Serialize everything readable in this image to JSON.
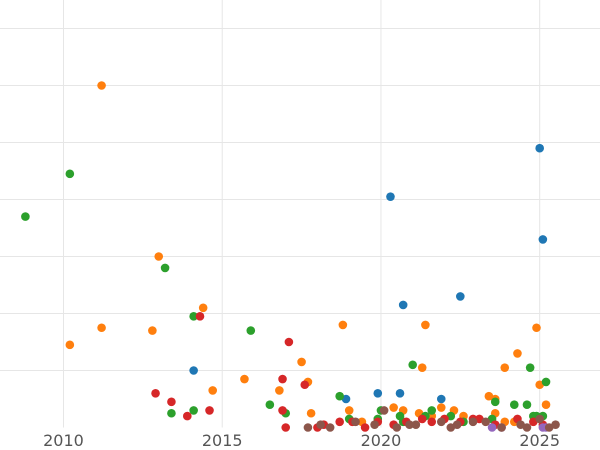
{
  "chart_data": {
    "type": "scatter",
    "title": "",
    "xlabel": "",
    "ylabel": "",
    "xlim": [
      2008,
      2026.9
    ],
    "ylim": [
      0,
      7.5
    ],
    "x_ticks": [
      2010,
      2015,
      2020,
      2025
    ],
    "x_tick_labels": [
      "2010",
      "2015",
      "2020",
      "2025"
    ],
    "y_gridlines": [
      1,
      2,
      3,
      4,
      5,
      6,
      7
    ],
    "y_tick_labels": [],
    "grid": true,
    "legend": "none",
    "series": [
      {
        "color": "#1f77b4",
        "points": [
          [
            2014.1,
            1.0
          ],
          [
            2018.9,
            0.5
          ],
          [
            2019.9,
            0.6
          ],
          [
            2020.3,
            4.05
          ],
          [
            2020.6,
            0.6
          ],
          [
            2020.7,
            2.15
          ],
          [
            2021.9,
            0.5
          ],
          [
            2022.5,
            2.3
          ],
          [
            2025.0,
            4.9
          ],
          [
            2025.1,
            3.3
          ]
        ]
      },
      {
        "color": "#ff7f0e",
        "points": [
          [
            2010.2,
            1.45
          ],
          [
            2011.2,
            1.75
          ],
          [
            2011.2,
            6.0
          ],
          [
            2012.8,
            1.7
          ],
          [
            2013.0,
            3.0
          ],
          [
            2014.4,
            2.1
          ],
          [
            2014.7,
            0.65
          ],
          [
            2015.7,
            0.85
          ],
          [
            2016.8,
            0.65
          ],
          [
            2017.5,
            1.15
          ],
          [
            2017.7,
            0.8
          ],
          [
            2017.8,
            0.25
          ],
          [
            2018.8,
            1.8
          ],
          [
            2019.0,
            0.3
          ],
          [
            2019.4,
            0.1
          ],
          [
            2020.4,
            0.35
          ],
          [
            2020.7,
            0.3
          ],
          [
            2021.2,
            0.25
          ],
          [
            2021.3,
            1.05
          ],
          [
            2021.4,
            1.8
          ],
          [
            2021.6,
            0.2
          ],
          [
            2021.9,
            0.35
          ],
          [
            2022.3,
            0.3
          ],
          [
            2022.6,
            0.2
          ],
          [
            2023.4,
            0.55
          ],
          [
            2023.6,
            0.5
          ],
          [
            2023.6,
            0.25
          ],
          [
            2023.9,
            1.05
          ],
          [
            2023.9,
            0.1
          ],
          [
            2024.2,
            0.1
          ],
          [
            2024.3,
            1.3
          ],
          [
            2024.9,
            1.75
          ],
          [
            2025.0,
            0.75
          ],
          [
            2025.2,
            0.4
          ]
        ]
      },
      {
        "color": "#2ca02c",
        "points": [
          [
            2008.8,
            3.7
          ],
          [
            2010.2,
            4.45
          ],
          [
            2013.2,
            2.8
          ],
          [
            2013.4,
            0.25
          ],
          [
            2014.1,
            1.95
          ],
          [
            2014.1,
            0.3
          ],
          [
            2015.9,
            1.7
          ],
          [
            2016.5,
            0.4
          ],
          [
            2017.0,
            0.25
          ],
          [
            2018.7,
            0.55
          ],
          [
            2019.0,
            0.15
          ],
          [
            2019.9,
            0.15
          ],
          [
            2020.0,
            0.3
          ],
          [
            2020.6,
            0.2
          ],
          [
            2020.7,
            0.1
          ],
          [
            2021.0,
            1.1
          ],
          [
            2021.4,
            0.2
          ],
          [
            2021.6,
            0.3
          ],
          [
            2022.2,
            0.2
          ],
          [
            2022.6,
            0.1
          ],
          [
            2023.5,
            0.15
          ],
          [
            2023.6,
            0.45
          ],
          [
            2024.2,
            0.4
          ],
          [
            2024.6,
            0.4
          ],
          [
            2024.8,
            0.2
          ],
          [
            2024.9,
            0.2
          ],
          [
            2025.1,
            0.2
          ],
          [
            2025.2,
            0.8
          ],
          [
            2024.7,
            1.05
          ]
        ]
      },
      {
        "color": "#d62728",
        "points": [
          [
            2012.9,
            0.6
          ],
          [
            2013.4,
            0.45
          ],
          [
            2013.9,
            0.2
          ],
          [
            2014.3,
            1.95
          ],
          [
            2014.6,
            0.3
          ],
          [
            2016.9,
            0.85
          ],
          [
            2016.9,
            0.3
          ],
          [
            2017.0,
            0.0
          ],
          [
            2017.1,
            1.5
          ],
          [
            2017.6,
            0.75
          ],
          [
            2018.0,
            0.0
          ],
          [
            2018.2,
            0.05
          ],
          [
            2018.7,
            0.1
          ],
          [
            2019.1,
            0.1
          ],
          [
            2019.5,
            0.0
          ],
          [
            2019.9,
            0.1
          ],
          [
            2020.4,
            0.05
          ],
          [
            2020.8,
            0.1
          ],
          [
            2021.3,
            0.15
          ],
          [
            2021.6,
            0.1
          ],
          [
            2022.0,
            0.15
          ],
          [
            2022.5,
            0.1
          ],
          [
            2022.9,
            0.15
          ],
          [
            2023.1,
            0.15
          ],
          [
            2023.6,
            0.05
          ],
          [
            2024.3,
            0.15
          ],
          [
            2024.8,
            0.1
          ],
          [
            2025.1,
            0.05
          ]
        ]
      },
      {
        "color": "#9467bd",
        "points": [
          [
            2023.5,
            0.0
          ],
          [
            2023.8,
            0.0
          ],
          [
            2025.1,
            0.0
          ],
          [
            2025.2,
            0.0
          ]
        ]
      },
      {
        "color": "#8c564b",
        "points": [
          [
            2017.7,
            0.0
          ],
          [
            2018.1,
            0.05
          ],
          [
            2018.4,
            0.0
          ],
          [
            2019.2,
            0.1
          ],
          [
            2019.8,
            0.05
          ],
          [
            2020.1,
            0.3
          ],
          [
            2020.5,
            0.0
          ],
          [
            2020.9,
            0.05
          ],
          [
            2021.1,
            0.05
          ],
          [
            2021.9,
            0.1
          ],
          [
            2022.2,
            0.0
          ],
          [
            2022.4,
            0.05
          ],
          [
            2022.9,
            0.1
          ],
          [
            2023.3,
            0.1
          ],
          [
            2023.8,
            0.0
          ],
          [
            2024.4,
            0.05
          ],
          [
            2024.6,
            0.0
          ],
          [
            2025.0,
            0.15
          ],
          [
            2025.3,
            0.0
          ],
          [
            2025.5,
            0.05
          ]
        ]
      }
    ]
  }
}
